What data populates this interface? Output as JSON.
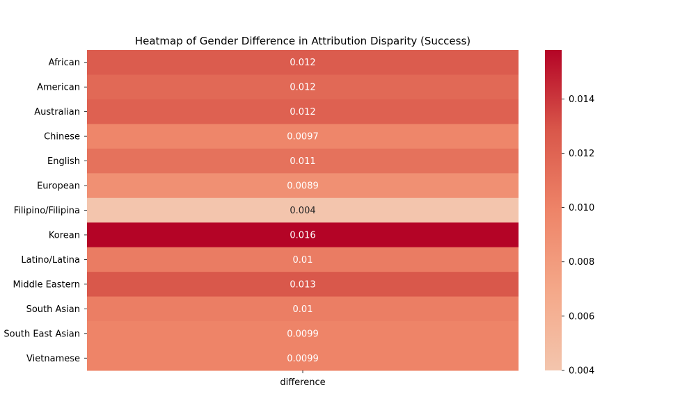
{
  "chart_data": {
    "type": "heatmap",
    "title": "Heatmap of Gender Difference in Attribution Disparity (Success)",
    "xlabel": "",
    "ylabel": "",
    "columns": [
      "difference"
    ],
    "rows": [
      "African",
      "American",
      "Australian",
      "Chinese",
      "English",
      "European",
      "Filipino/Filipina",
      "Korean",
      "Latino/Latina",
      "Middle Eastern",
      "South Asian",
      "South East Asian",
      "Vietnamese"
    ],
    "values": [
      0.0125,
      0.0117,
      0.0122,
      0.0097,
      0.0111,
      0.0089,
      0.004,
      0.0158,
      0.0104,
      0.0128,
      0.0103,
      0.0099,
      0.0099
    ],
    "annotations": [
      "0.012",
      "0.012",
      "0.012",
      "0.0097",
      "0.011",
      "0.0089",
      "0.004",
      "0.016",
      "0.01",
      "0.013",
      "0.01",
      "0.0099",
      "0.0099"
    ],
    "colorbar": {
      "range": [
        0.004,
        0.0158
      ],
      "ticks": [
        0.004,
        0.006,
        0.008,
        0.01,
        0.012,
        0.014
      ],
      "tick_labels": [
        "0.004",
        "0.006",
        "0.008",
        "0.010",
        "0.012",
        "0.014"
      ],
      "colormap": "coolwarm",
      "low_color": "#f3c5ad",
      "high_color": "#b40426"
    },
    "grid": false
  }
}
